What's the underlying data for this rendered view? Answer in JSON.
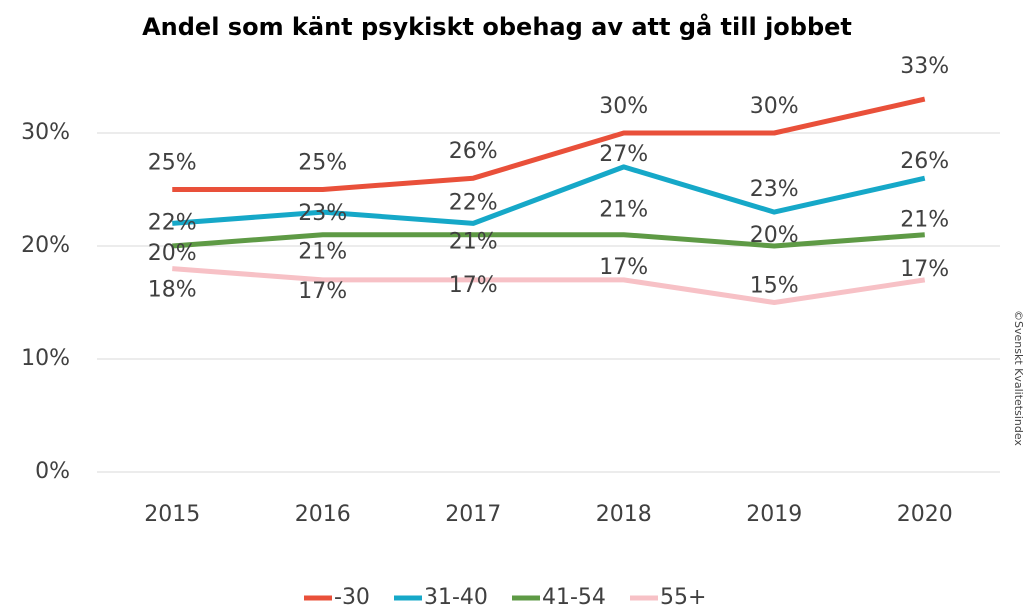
{
  "chart_data": {
    "type": "line",
    "title": "Andel som känt psykiskt obehag av att gå till jobbet",
    "annotation": "©Svenskt Kvalitetsindex",
    "categories": [
      "2015",
      "2016",
      "2017",
      "2018",
      "2019",
      "2020"
    ],
    "series": [
      {
        "name": "-30",
        "color": "#e9503a",
        "values": [
          25,
          25,
          26,
          30,
          30,
          33
        ],
        "value_labels": [
          "25%",
          "25%",
          "26%",
          "30%",
          "30%",
          "33%"
        ]
      },
      {
        "name": "31-40",
        "color": "#16a8c8",
        "values": [
          22,
          23,
          22,
          27,
          23,
          26
        ],
        "value_labels": [
          "22%",
          "23%",
          "22%",
          "27%",
          "23%",
          "26%"
        ]
      },
      {
        "name": "41-54",
        "color": "#5e9a45",
        "values": [
          20,
          21,
          21,
          21,
          20,
          21
        ],
        "value_labels": [
          "20%",
          "21%",
          "21%",
          "21%",
          "20%",
          "21%"
        ]
      },
      {
        "name": "55+",
        "color": "#f7c1c6",
        "values": [
          18,
          17,
          17,
          17,
          15,
          17
        ],
        "value_labels": [
          "18%",
          "17%",
          "17%",
          "17%",
          "15%",
          "17%"
        ]
      }
    ],
    "ylim": [
      0,
      35
    ],
    "yticks": [
      {
        "value": 0,
        "label": "0%"
      },
      {
        "value": 10,
        "label": "10%"
      },
      {
        "value": 20,
        "label": "20%"
      },
      {
        "value": 30,
        "label": "30%"
      }
    ],
    "grid": true,
    "legend": "bottom"
  }
}
